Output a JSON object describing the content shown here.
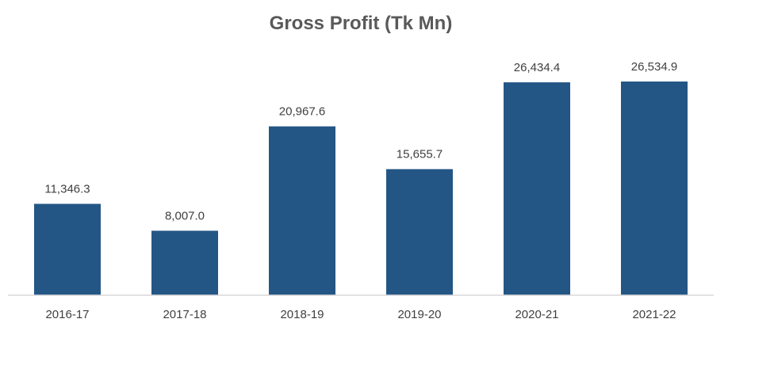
{
  "chart_data": {
    "type": "bar",
    "title": "Gross Profit (Tk Mn)",
    "xlabel": "",
    "ylabel": "",
    "categories": [
      "2016-17",
      "2017-18",
      "2018-19",
      "2019-20",
      "2020-21",
      "2021-22"
    ],
    "values": [
      11346.3,
      8007.0,
      20967.6,
      15655.7,
      26434.4,
      26534.9
    ],
    "value_labels": [
      "11,346.3",
      "8,007.0",
      "20,967.6",
      "15,655.7",
      "26,434.4",
      "26,534.9"
    ],
    "ylim": [
      0,
      26534.9
    ],
    "grid": false,
    "legend": "none",
    "bar_color": "#235685",
    "axis_color": "#d9d9d9"
  }
}
